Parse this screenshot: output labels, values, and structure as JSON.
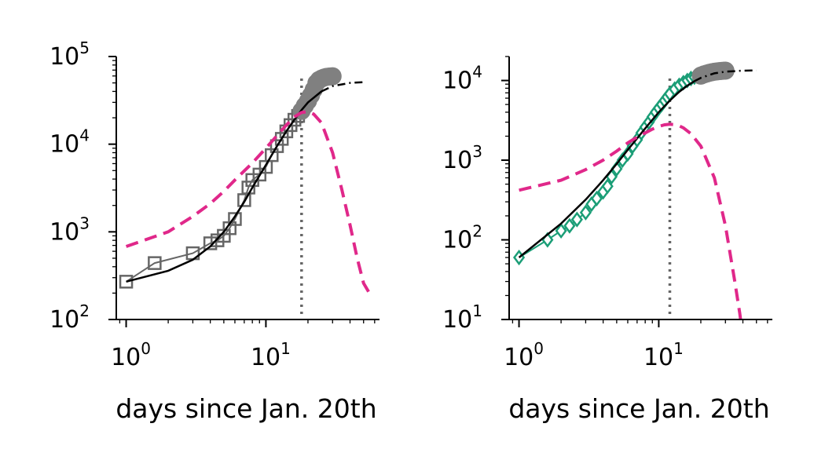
{
  "chart_data": [
    {
      "type": "line",
      "x_scale": "log",
      "y_scale": "log",
      "xlabel": "days since Jan. 20th",
      "ylabel": "",
      "xlim": [
        0.85,
        65
      ],
      "ylim": [
        100,
        100000
      ],
      "x_ticks": [
        {
          "base": "10",
          "exp": "0",
          "value": 1
        },
        {
          "base": "10",
          "exp": "1",
          "value": 10
        }
      ],
      "y_ticks": [
        {
          "base": "10",
          "exp": "2",
          "value": 100
        },
        {
          "base": "10",
          "exp": "3",
          "value": 1000
        },
        {
          "base": "10",
          "exp": "4",
          "value": 10000
        },
        {
          "base": "10",
          "exp": "5",
          "value": 100000
        }
      ],
      "vline_x": 18,
      "series": [
        {
          "style": "observed-squares",
          "color": "#666666",
          "x": [
            1,
            1.6,
            3,
            4,
            4.5,
            5,
            5.5,
            6,
            7,
            7.5,
            8,
            9,
            10,
            11,
            12,
            13,
            14,
            15,
            16,
            17
          ],
          "y": [
            270,
            440,
            570,
            740,
            800,
            900,
            1100,
            1400,
            2300,
            3200,
            3900,
            4500,
            5500,
            7500,
            9500,
            11500,
            14000,
            16500,
            19000,
            21000
          ]
        },
        {
          "style": "observed-circles",
          "color": "#808080",
          "x": [
            18,
            19,
            20,
            21,
            22,
            23,
            24,
            25,
            26,
            27,
            28,
            29,
            30
          ],
          "y": [
            24000,
            27500,
            31000,
            36000,
            42000,
            50000,
            54000,
            56000,
            57500,
            58500,
            59000,
            59300,
            59500
          ]
        },
        {
          "style": "fit",
          "color": "#000000",
          "x": [
            1,
            2,
            3,
            4,
            5,
            6,
            7,
            8,
            10,
            12,
            14,
            16,
            18,
            20,
            25,
            30,
            40,
            50
          ],
          "y": [
            270,
            360,
            480,
            680,
            1000,
            1500,
            2200,
            3200,
            5800,
            9500,
            14000,
            19000,
            24500,
            30000,
            40000,
            46000,
            50000,
            51000
          ]
        },
        {
          "style": "daily",
          "color": "#e0288a",
          "x": [
            1,
            2,
            3,
            4,
            5,
            6,
            8,
            10,
            12,
            14,
            16,
            18,
            20,
            22,
            25,
            30,
            35,
            40,
            45,
            50,
            55
          ],
          "y": [
            680,
            1000,
            1500,
            2100,
            2900,
            3900,
            6100,
            9000,
            12500,
            16500,
            20500,
            23000,
            23500,
            22000,
            17500,
            8000,
            3000,
            1200,
            500,
            260,
            200
          ]
        }
      ]
    },
    {
      "type": "line",
      "x_scale": "log",
      "y_scale": "log",
      "xlabel": "days since Jan. 20th",
      "ylabel": "",
      "xlim": [
        0.85,
        65
      ],
      "ylim": [
        10,
        20000
      ],
      "x_ticks": [
        {
          "base": "10",
          "exp": "0",
          "value": 1
        },
        {
          "base": "10",
          "exp": "1",
          "value": 10
        }
      ],
      "y_ticks": [
        {
          "base": "10",
          "exp": "1",
          "value": 10
        },
        {
          "base": "10",
          "exp": "2",
          "value": 100
        },
        {
          "base": "10",
          "exp": "3",
          "value": 1000
        },
        {
          "base": "10",
          "exp": "4",
          "value": 10000
        }
      ],
      "vline_x": 12,
      "series": [
        {
          "style": "observed-diamonds",
          "color": "#1b9e77",
          "x": [
            1,
            1.6,
            2,
            2.3,
            2.6,
            3,
            3.3,
            3.6,
            4,
            4.3,
            4.6,
            5,
            5.5,
            6,
            6.5,
            7,
            7.5,
            8,
            8.5,
            9,
            9.5,
            10,
            10.5,
            11,
            11.5,
            12,
            13,
            14,
            15,
            16,
            17,
            18,
            19,
            20,
            21
          ],
          "y": [
            60,
            100,
            130,
            150,
            180,
            220,
            280,
            330,
            400,
            470,
            620,
            780,
            1000,
            1200,
            1500,
            1800,
            2200,
            2600,
            3000,
            3500,
            4000,
            4500,
            5000,
            5600,
            6200,
            6800,
            7800,
            8700,
            9400,
            10000,
            10600,
            11000,
            11400,
            11700,
            12000
          ]
        },
        {
          "style": "observed-circles",
          "color": "#808080",
          "x": [
            20,
            21,
            22,
            23,
            24,
            25,
            26,
            27,
            28,
            29,
            30
          ],
          "y": [
            11500,
            11900,
            12200,
            12500,
            12700,
            12900,
            13000,
            13100,
            13200,
            13250,
            13300
          ]
        },
        {
          "style": "fit",
          "color": "#000000",
          "x": [
            1,
            2,
            3,
            4,
            5,
            6,
            8,
            10,
            12,
            14,
            16,
            18,
            20,
            25,
            30,
            40,
            50
          ],
          "y": [
            60,
            160,
            320,
            560,
            900,
            1350,
            2500,
            4000,
            5600,
            7200,
            8600,
            9800,
            10800,
            12300,
            12900,
            13300,
            13400
          ]
        },
        {
          "style": "daily",
          "color": "#e0288a",
          "x": [
            1,
            2,
            3,
            4,
            5,
            6,
            7,
            8,
            9,
            10,
            11,
            12,
            13,
            14,
            15,
            17,
            20,
            25,
            30,
            35,
            38,
            40
          ],
          "y": [
            420,
            560,
            760,
            1000,
            1300,
            1650,
            1950,
            2200,
            2450,
            2650,
            2780,
            2820,
            2800,
            2700,
            2550,
            2150,
            1500,
            600,
            150,
            30,
            12,
            6
          ]
        }
      ]
    }
  ]
}
